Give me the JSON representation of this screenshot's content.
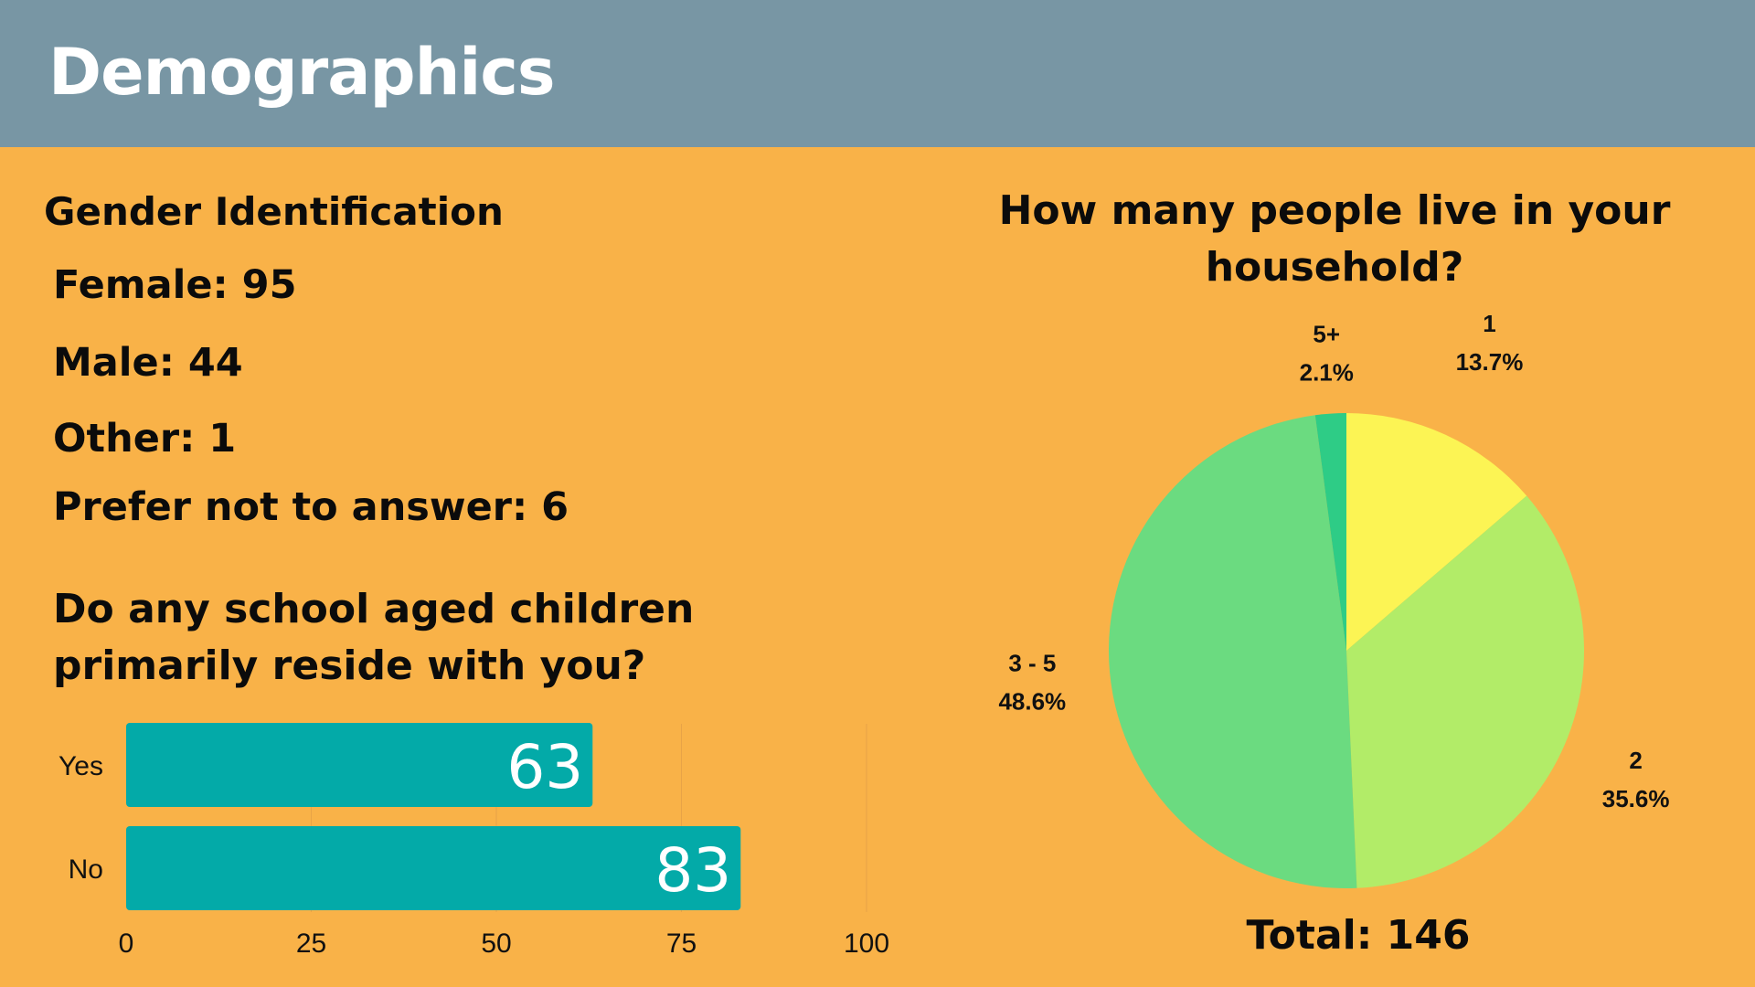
{
  "header": {
    "title": "Demographics"
  },
  "gender": {
    "heading": "Gender Identification",
    "items": [
      "Female: 95",
      "Male: 44",
      "Other: 1",
      "Prefer not to answer: 6"
    ]
  },
  "children": {
    "heading": "Do any school aged children primarily reside with you?"
  },
  "household": {
    "title": "How many people live in your household?",
    "total": "Total: 146"
  },
  "colors": {
    "background": "#F9B248",
    "header": "#7896A4",
    "bar": "#03AAA8",
    "slice_1": "#FCF454",
    "slice_2": "#B2EC68",
    "slice_3_5": "#6BDB80",
    "slice_5plus": "#2ECC86"
  },
  "chart_data": [
    {
      "type": "bar",
      "orientation": "horizontal",
      "title": "Do any school aged children primarily reside with you?",
      "categories": [
        "Yes",
        "No"
      ],
      "values": [
        63,
        83
      ],
      "xlim": [
        0,
        100
      ],
      "xticks": [
        0,
        25,
        50,
        75,
        100
      ],
      "grid": true
    },
    {
      "type": "pie",
      "title": "How many people live in your household?",
      "labels": [
        "1",
        "2",
        "3 - 5",
        "5+"
      ],
      "values": [
        13.7,
        35.6,
        48.6,
        2.1
      ],
      "value_labels": [
        "13.7%",
        "35.6%",
        "48.6%",
        "2.1%"
      ],
      "total": 146
    }
  ]
}
